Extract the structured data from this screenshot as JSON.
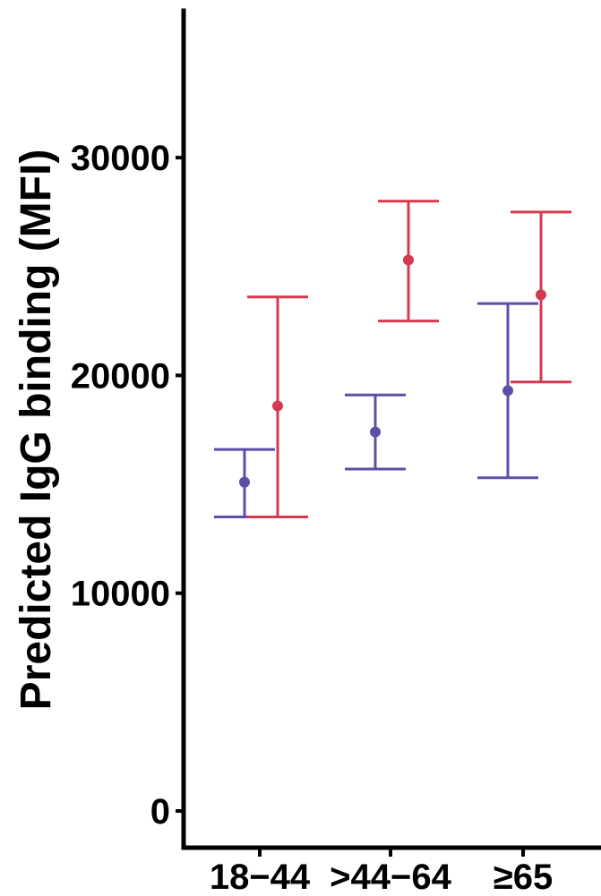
{
  "chart_data": {
    "type": "scatter",
    "title": "",
    "xlabel": "",
    "ylabel": "Predicted IgG binding (MFI)",
    "categories": [
      "18−44",
      ">44−64",
      "≥65"
    ],
    "yticks": [
      0,
      10000,
      20000,
      30000
    ],
    "ytick_labels": [
      "0",
      "10000",
      "20000",
      "30000"
    ],
    "ylim": [
      -1700,
      36800
    ],
    "grid": false,
    "legend": "none",
    "series": [
      {
        "color": "#5b4fa6",
        "values": [
          15100,
          17400,
          19300
        ],
        "lower": [
          13500,
          15700,
          15300
        ],
        "upper": [
          16600,
          19100,
          23300
        ]
      },
      {
        "color": "#d43a4f",
        "values": [
          18600,
          25300,
          23700
        ],
        "lower": [
          13500,
          22500,
          19700
        ],
        "upper": [
          23600,
          28000,
          27500
        ]
      }
    ]
  }
}
